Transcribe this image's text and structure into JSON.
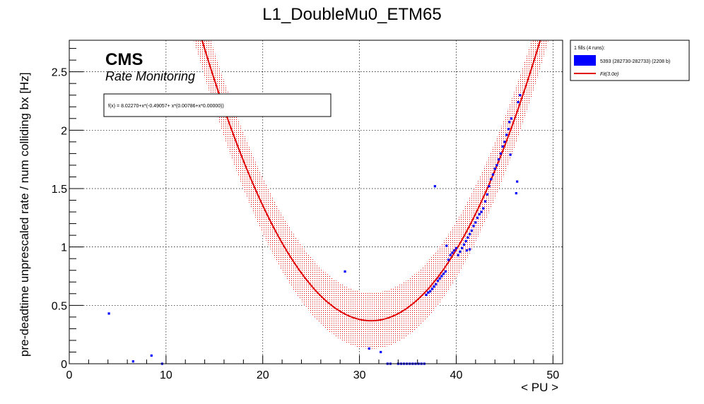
{
  "chart_data": {
    "type": "scatter",
    "title": "L1_DoubleMu0_ETM65",
    "xlabel": "< PU >",
    "ylabel": "pre-deadtime unprescaled rate / num colliding bx [Hz]",
    "xlim": [
      0,
      51
    ],
    "ylim": [
      0,
      2.77
    ],
    "x_ticks": [
      0,
      10,
      20,
      30,
      40,
      50
    ],
    "y_ticks": [
      0,
      0.5,
      1,
      1.5,
      2,
      2.5
    ],
    "x_tick_labels": [
      "0",
      "10",
      "20",
      "30",
      "40",
      "50"
    ],
    "y_tick_labels": [
      "0",
      "0.5",
      "1",
      "1.5",
      "2",
      "2.5"
    ],
    "grid": true,
    "cms_label": "CMS",
    "cms_sublabel": "Rate Monitoring",
    "fit_formula": "f(x) = 8.02270+x*(-0.49057+ x*(0.00786+x*0.00000))",
    "fit_coefficients": [
      8.0227,
      -0.49057,
      0.00786,
      0.0
    ],
    "fit_band_halfwidth": 0.24,
    "fit_x_range": [
      12,
      50
    ],
    "legend": {
      "header": "1 fills (4 runs):",
      "entries": [
        {
          "label": "5393 (282730-282733) (2208 b)",
          "kind": "box",
          "color": "#0000ff"
        },
        {
          "label": "Fit(3.0σ)",
          "kind": "line",
          "color": "#e00000"
        }
      ]
    },
    "colors": {
      "data": "#0000ff",
      "fit": "#e00000",
      "band": "#e00000"
    },
    "series": [
      {
        "name": "5393 (282730-282733) (2208 b)",
        "points": [
          [
            4.1,
            0.43
          ],
          [
            6.6,
            0.02
          ],
          [
            8.5,
            0.07
          ],
          [
            9.6,
            0.0
          ],
          [
            28.5,
            0.79
          ],
          [
            31.0,
            0.13
          ],
          [
            32.2,
            0.1
          ],
          [
            32.9,
            0.0
          ],
          [
            33.2,
            0.0
          ],
          [
            34.0,
            0.0
          ],
          [
            34.3,
            0.0
          ],
          [
            34.6,
            0.0
          ],
          [
            34.9,
            0.0
          ],
          [
            35.2,
            0.0
          ],
          [
            35.5,
            0.0
          ],
          [
            35.8,
            0.0
          ],
          [
            36.1,
            0.0
          ],
          [
            36.4,
            0.0
          ],
          [
            36.7,
            0.0
          ],
          [
            36.9,
            0.59
          ],
          [
            37.1,
            0.61
          ],
          [
            37.3,
            0.62
          ],
          [
            37.5,
            0.64
          ],
          [
            37.7,
            0.66
          ],
          [
            37.9,
            0.68
          ],
          [
            38.1,
            0.71
          ],
          [
            38.3,
            0.73
          ],
          [
            38.5,
            0.75
          ],
          [
            38.7,
            0.77
          ],
          [
            38.9,
            0.79
          ],
          [
            37.8,
            1.52
          ],
          [
            39.0,
            1.01
          ],
          [
            39.2,
            0.89
          ],
          [
            39.4,
            0.93
          ],
          [
            39.6,
            0.95
          ],
          [
            39.8,
            0.97
          ],
          [
            40.0,
            0.99
          ],
          [
            40.2,
            0.93
          ],
          [
            40.4,
            0.96
          ],
          [
            40.6,
            0.99
          ],
          [
            40.8,
            1.02
          ],
          [
            41.0,
            1.05
          ],
          [
            41.1,
            0.97
          ],
          [
            41.4,
            0.98
          ],
          [
            41.2,
            1.08
          ],
          [
            41.4,
            1.11
          ],
          [
            41.6,
            1.14
          ],
          [
            41.8,
            1.18
          ],
          [
            42.0,
            1.21
          ],
          [
            42.2,
            1.25
          ],
          [
            42.4,
            1.28
          ],
          [
            42.6,
            1.3
          ],
          [
            42.8,
            1.33
          ],
          [
            43.0,
            1.39
          ],
          [
            43.2,
            1.45
          ],
          [
            43.4,
            1.52
          ],
          [
            43.6,
            1.58
          ],
          [
            43.8,
            1.62
          ],
          [
            44.0,
            1.67
          ],
          [
            44.2,
            1.7
          ],
          [
            44.4,
            1.75
          ],
          [
            44.6,
            1.8
          ],
          [
            44.8,
            1.86
          ],
          [
            45.0,
            1.9
          ],
          [
            45.2,
            1.96
          ],
          [
            45.4,
            2.01
          ],
          [
            45.5,
            2.07
          ],
          [
            45.7,
            2.1
          ],
          [
            45.6,
            1.79
          ],
          [
            46.3,
            1.56
          ],
          [
            46.2,
            1.46
          ],
          [
            46.4,
            2.24
          ],
          [
            46.6,
            2.3
          ]
        ]
      }
    ]
  }
}
